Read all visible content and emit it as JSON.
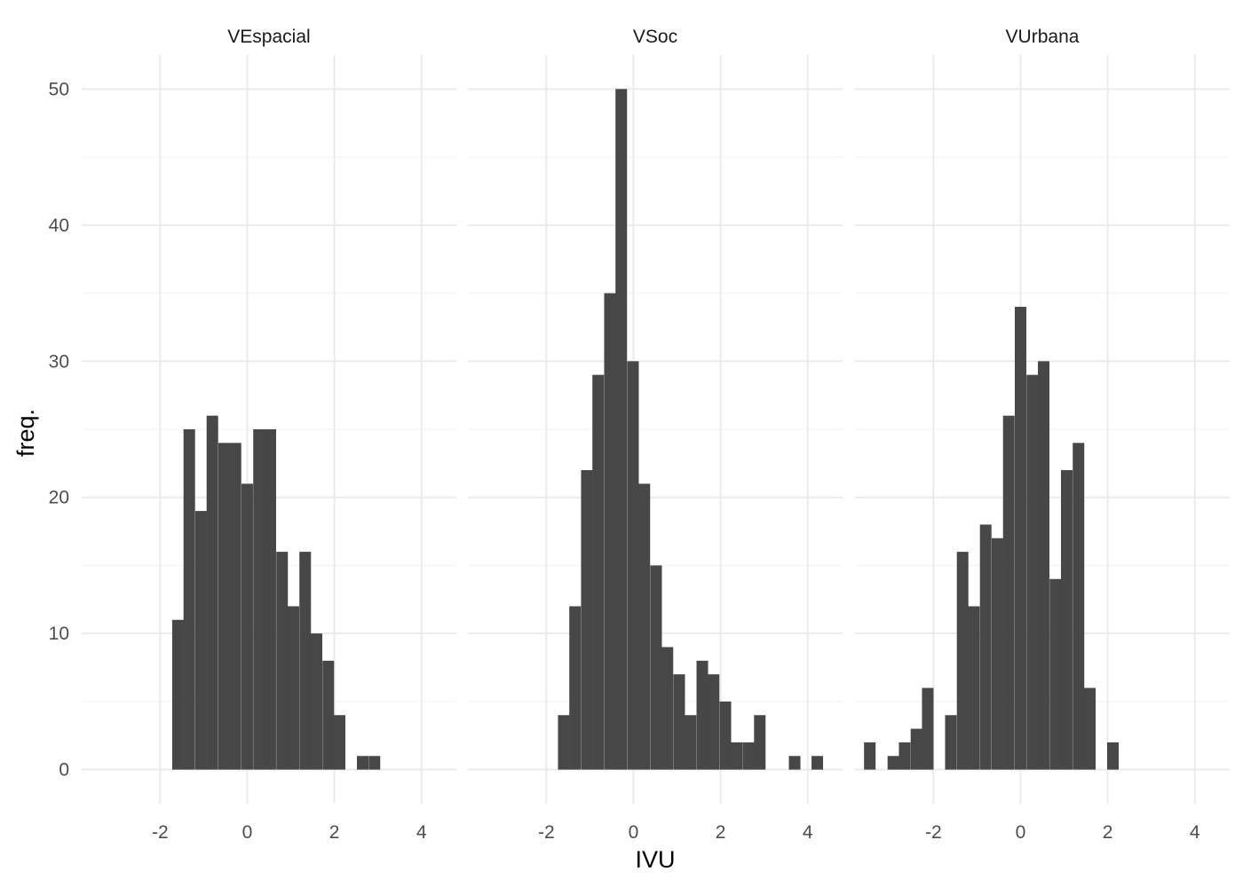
{
  "chart_data": {
    "type": "bar",
    "xlabel": "IVU",
    "ylabel": "freq.",
    "xlim": [
      -3.8,
      4.8
    ],
    "ylim": [
      -2.5,
      52.5
    ],
    "x_ticks": [
      -2,
      0,
      2,
      4
    ],
    "x_tick_labels": [
      "-2",
      "0",
      "2",
      "4"
    ],
    "y_ticks": [
      0,
      10,
      20,
      30,
      40,
      50
    ],
    "y_tick_labels": [
      "0",
      "10",
      "20",
      "30",
      "40",
      "50"
    ],
    "bin_width": 0.265,
    "grid": true,
    "bar_color": "#474747",
    "panels": [
      {
        "name": "VEspacial",
        "bars": [
          {
            "x": -1.59,
            "y": 11
          },
          {
            "x": -1.33,
            "y": 25
          },
          {
            "x": -1.06,
            "y": 19
          },
          {
            "x": -0.8,
            "y": 26
          },
          {
            "x": -0.53,
            "y": 24
          },
          {
            "x": -0.27,
            "y": 24
          },
          {
            "x": 0.0,
            "y": 21
          },
          {
            "x": 0.27,
            "y": 25
          },
          {
            "x": 0.53,
            "y": 25
          },
          {
            "x": 0.8,
            "y": 16
          },
          {
            "x": 1.06,
            "y": 12
          },
          {
            "x": 1.33,
            "y": 16
          },
          {
            "x": 1.59,
            "y": 10
          },
          {
            "x": 1.86,
            "y": 8
          },
          {
            "x": 2.12,
            "y": 4
          },
          {
            "x": 2.65,
            "y": 1
          },
          {
            "x": 2.92,
            "y": 1
          }
        ]
      },
      {
        "name": "VSoc",
        "bars": [
          {
            "x": -1.6,
            "y": 4
          },
          {
            "x": -1.34,
            "y": 12
          },
          {
            "x": -1.07,
            "y": 22
          },
          {
            "x": -0.81,
            "y": 29
          },
          {
            "x": -0.54,
            "y": 35
          },
          {
            "x": -0.28,
            "y": 50
          },
          {
            "x": -0.01,
            "y": 30
          },
          {
            "x": 0.25,
            "y": 21
          },
          {
            "x": 0.52,
            "y": 15
          },
          {
            "x": 0.78,
            "y": 9
          },
          {
            "x": 1.05,
            "y": 7
          },
          {
            "x": 1.31,
            "y": 4
          },
          {
            "x": 1.58,
            "y": 8
          },
          {
            "x": 1.84,
            "y": 7
          },
          {
            "x": 2.11,
            "y": 5
          },
          {
            "x": 2.37,
            "y": 2
          },
          {
            "x": 2.64,
            "y": 2
          },
          {
            "x": 2.9,
            "y": 4
          },
          {
            "x": 3.7,
            "y": 1
          },
          {
            "x": 4.22,
            "y": 1
          }
        ]
      },
      {
        "name": "VUrbana",
        "bars": [
          {
            "x": -3.46,
            "y": 2
          },
          {
            "x": -2.92,
            "y": 1
          },
          {
            "x": -2.66,
            "y": 2
          },
          {
            "x": -2.39,
            "y": 3
          },
          {
            "x": -2.13,
            "y": 6
          },
          {
            "x": -1.6,
            "y": 4
          },
          {
            "x": -1.33,
            "y": 16
          },
          {
            "x": -1.07,
            "y": 12
          },
          {
            "x": -0.8,
            "y": 18
          },
          {
            "x": -0.53,
            "y": 17
          },
          {
            "x": -0.27,
            "y": 26
          },
          {
            "x": 0.0,
            "y": 34
          },
          {
            "x": 0.27,
            "y": 29
          },
          {
            "x": 0.53,
            "y": 30
          },
          {
            "x": 0.8,
            "y": 14
          },
          {
            "x": 1.06,
            "y": 22
          },
          {
            "x": 1.33,
            "y": 24
          },
          {
            "x": 1.59,
            "y": 6
          },
          {
            "x": 2.12,
            "y": 2
          }
        ]
      }
    ]
  }
}
